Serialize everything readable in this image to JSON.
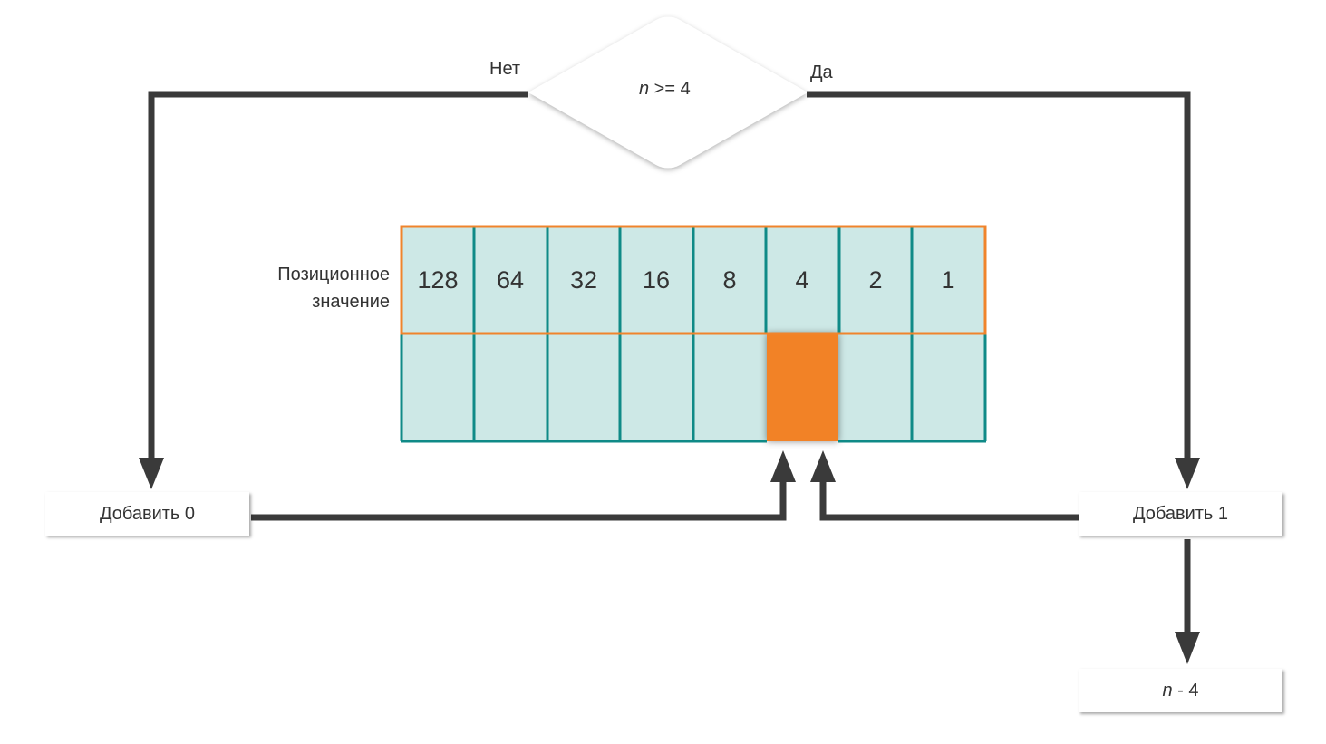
{
  "decision": {
    "variable": "n",
    "condition_rest": " >= 4",
    "no_label": "Нет",
    "yes_label": "Да"
  },
  "table": {
    "row_label_line1": "Позиционное",
    "row_label_line2": "значение",
    "place_values": [
      "128",
      "64",
      "32",
      "16",
      "8",
      "4",
      "2",
      "1"
    ],
    "highlighted_index": 5
  },
  "actions": {
    "add_zero": "Добавить 0",
    "add_one": "Добавить 1",
    "subtract_variable": "n",
    "subtract_rest": " - 4"
  },
  "colors": {
    "arrow": "#3a3a3a",
    "cell_fill": "#cde8e6",
    "cell_border": "#0f8a87",
    "header_border": "#f0842c",
    "highlight_fill": "#f28227"
  }
}
